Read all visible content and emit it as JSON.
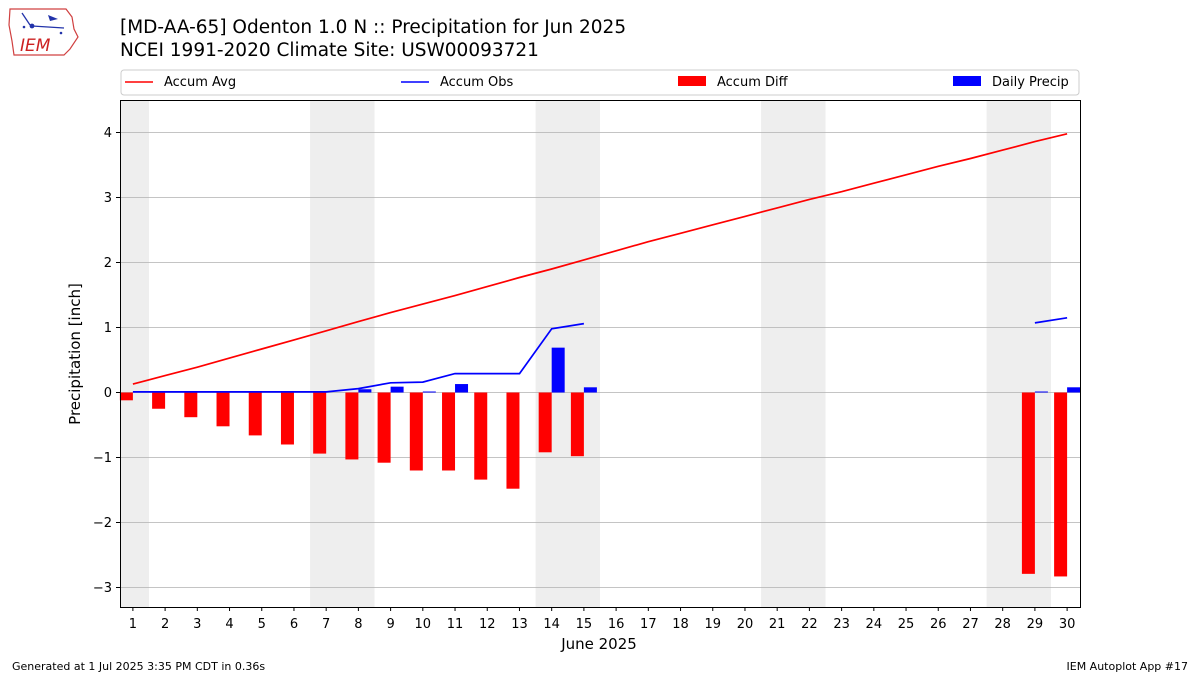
{
  "header": {
    "title_line1": "[MD-AA-65] Odenton 1.0 N :: Precipitation for Jun 2025",
    "title_line2": "NCEI 1991-2020 Climate Site: USW00093721",
    "logo_text": "IEM"
  },
  "footer": {
    "generated": "Generated at 1 Jul 2025 3:35 PM CDT in 0.36s",
    "app": "IEM Autoplot App #17"
  },
  "colors": {
    "accum_avg": "#ff0000",
    "accum_obs": "#0000ff",
    "accum_diff": "#ff0000",
    "daily_precip": "#0000ff",
    "weekend_band": "#eeeeee",
    "grid": "#b0b0b0"
  },
  "chart_data": {
    "type": "bar",
    "title": "[MD-AA-65] Odenton 1.0 N :: Precipitation for Jun 2025",
    "subtitle": "NCEI 1991-2020 Climate Site: USW00093721",
    "xlabel": "June 2025",
    "ylabel": "Precipitation [inch]",
    "ylim": [
      -3.3,
      4.5
    ],
    "yticks": [
      -3,
      -2,
      -1,
      0,
      1,
      2,
      3,
      4
    ],
    "ytick_labels": [
      "−3",
      "−2",
      "−1",
      "0",
      "1",
      "2",
      "3",
      "4"
    ],
    "grid": "horizontal",
    "legend_placement": "top",
    "days": [
      1,
      2,
      3,
      4,
      5,
      6,
      7,
      8,
      9,
      10,
      11,
      12,
      13,
      14,
      15,
      16,
      17,
      18,
      19,
      20,
      21,
      22,
      23,
      24,
      25,
      26,
      27,
      28,
      29,
      30
    ],
    "weekend_bands": [
      [
        0.5,
        1.5
      ],
      [
        6.5,
        8.5
      ],
      [
        13.5,
        15.5
      ],
      [
        20.5,
        22.5
      ],
      [
        27.5,
        29.5
      ]
    ],
    "series": [
      {
        "name": "Accum Avg",
        "kind": "line",
        "values": [
          0.13,
          0.26,
          0.39,
          0.53,
          0.67,
          0.81,
          0.95,
          1.09,
          1.23,
          1.36,
          1.49,
          1.63,
          1.77,
          1.9,
          2.04,
          2.18,
          2.32,
          2.45,
          2.58,
          2.71,
          2.84,
          2.97,
          3.09,
          3.22,
          3.35,
          3.48,
          3.6,
          3.73,
          3.86,
          3.98
        ]
      },
      {
        "name": "Accum Obs",
        "kind": "line",
        "values": [
          0.01,
          0.01,
          0.01,
          0.01,
          0.01,
          0.01,
          0.01,
          0.06,
          0.15,
          0.16,
          0.29,
          0.29,
          0.29,
          0.98,
          1.06,
          null,
          null,
          null,
          null,
          null,
          null,
          null,
          null,
          null,
          null,
          null,
          null,
          null,
          1.07,
          1.15
        ]
      },
      {
        "name": "Accum Diff",
        "kind": "bar",
        "values": [
          -0.12,
          -0.25,
          -0.38,
          -0.52,
          -0.66,
          -0.8,
          -0.94,
          -1.03,
          -1.08,
          -1.2,
          -1.2,
          -1.34,
          -1.48,
          -0.92,
          -0.98,
          null,
          null,
          null,
          null,
          null,
          null,
          null,
          null,
          null,
          null,
          null,
          null,
          null,
          -2.79,
          -2.83
        ]
      },
      {
        "name": "Daily Precip",
        "kind": "bar",
        "values": [
          0,
          0,
          0,
          0,
          0,
          0,
          0,
          0.05,
          0.09,
          0.01,
          0.13,
          0,
          0,
          0.69,
          0.08,
          null,
          null,
          null,
          null,
          null,
          null,
          null,
          null,
          null,
          null,
          null,
          null,
          null,
          0.01,
          0.08
        ]
      }
    ]
  }
}
